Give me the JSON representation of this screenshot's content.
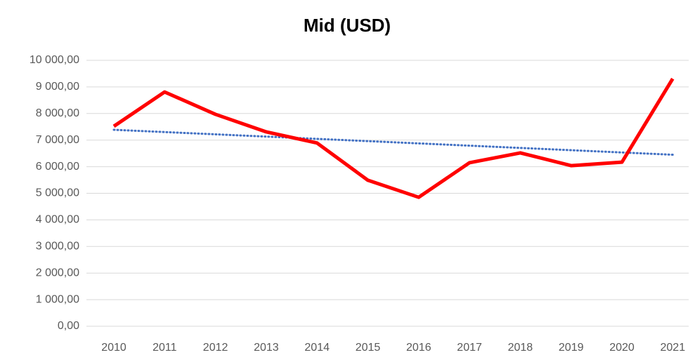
{
  "chart_data": {
    "type": "line",
    "title": "Mid (USD)",
    "categories": [
      "2010",
      "2011",
      "2012",
      "2013",
      "2014",
      "2015",
      "2016",
      "2017",
      "2018",
      "2019",
      "2020",
      "2021"
    ],
    "series": [
      {
        "name": "Mid (USD)",
        "color": "#ff0000",
        "values": [
          7520,
          8810,
          7970,
          7310,
          6890,
          5490,
          4850,
          6150,
          6520,
          6040,
          6170,
          9310
        ]
      }
    ],
    "ylim": [
      0,
      10000
    ],
    "yticks": [
      {
        "value": 0,
        "label": "0,00"
      },
      {
        "value": 1000,
        "label": "1 000,00"
      },
      {
        "value": 2000,
        "label": "2 000,00"
      },
      {
        "value": 3000,
        "label": "3 000,00"
      },
      {
        "value": 4000,
        "label": "4 000,00"
      },
      {
        "value": 5000,
        "label": "5 000,00"
      },
      {
        "value": 6000,
        "label": "6 000,00"
      },
      {
        "value": 7000,
        "label": "7 000,00"
      },
      {
        "value": 8000,
        "label": "8 000,00"
      },
      {
        "value": 9000,
        "label": "9 000,00"
      },
      {
        "value": 10000,
        "label": "10 000,00"
      }
    ],
    "grid": true,
    "trendline": {
      "type": "linear",
      "color": "#4472c4"
    }
  }
}
